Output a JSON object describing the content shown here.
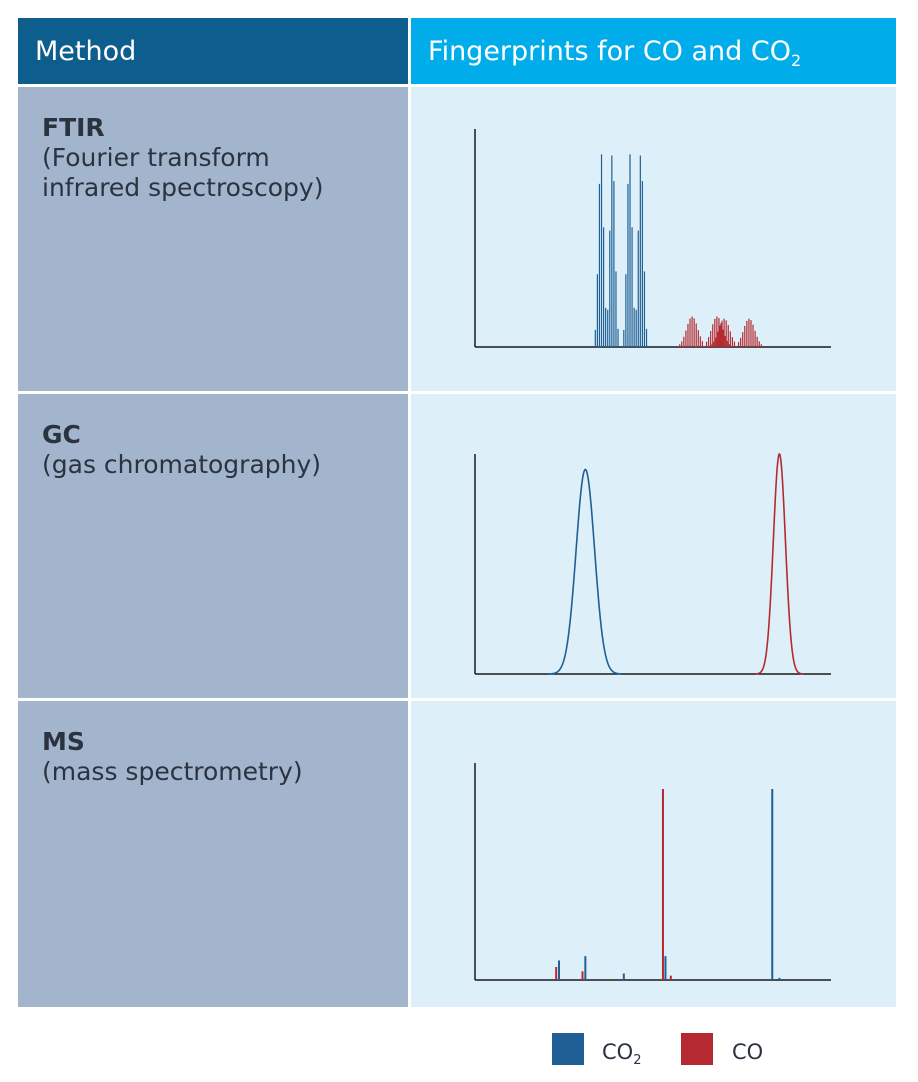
{
  "header": {
    "method_label": "Method",
    "fingerprint_label": "Fingerprints for CO and CO",
    "fingerprint_sub": "2"
  },
  "methods": [
    {
      "abbr": "FTIR",
      "full_1": "(Fourier transform",
      "full_2": "infrared spectroscopy)"
    },
    {
      "abbr": "GC",
      "full_1": "(gas chromatography)",
      "full_2": ""
    },
    {
      "abbr": "MS",
      "full_1": "(mass spectrometry)",
      "full_2": ""
    }
  ],
  "legend": {
    "co2_label": "CO",
    "co2_sub": "2",
    "co_label": "CO"
  },
  "colors": {
    "co2": "#1f5f95",
    "co": "#b52a30",
    "header_dark": "#0d5e8c",
    "header_light": "#00adea",
    "method_bg": "#a3b5cd",
    "plot_bg": "#ddf0f9"
  },
  "chart_data": [
    {
      "type": "bar",
      "method": "FTIR",
      "series": [
        {
          "name": "CO2",
          "bands": [
            {
              "center": 0.37,
              "halfwidth": 0.032,
              "peak": 0.9
            },
            {
              "center": 0.45,
              "halfwidth": 0.032,
              "peak": 0.9
            }
          ]
        },
        {
          "name": "CO",
          "bands": [
            {
              "center": 0.645,
              "halfwidth": 0.07,
              "peak": 0.14
            },
            {
              "center": 0.735,
              "halfwidth": 0.07,
              "peak": 0.13
            }
          ]
        }
      ]
    },
    {
      "type": "line",
      "method": "GC",
      "series": [
        {
          "name": "CO2",
          "center": 0.31,
          "width": 0.026,
          "peak": 0.93
        },
        {
          "name": "CO",
          "center": 0.855,
          "width": 0.017,
          "peak": 1.0
        }
      ]
    },
    {
      "type": "bar",
      "method": "MS",
      "series": [
        {
          "name": "CO2",
          "x": [
            0.236,
            0.31,
            0.418,
            0.535,
            0.835,
            0.855
          ],
          "y": [
            0.09,
            0.11,
            0.03,
            0.11,
            0.88,
            0.01
          ]
        },
        {
          "name": "CO",
          "x": [
            0.228,
            0.302,
            0.528,
            0.55
          ],
          "y": [
            0.06,
            0.04,
            0.88,
            0.02
          ]
        }
      ]
    }
  ]
}
